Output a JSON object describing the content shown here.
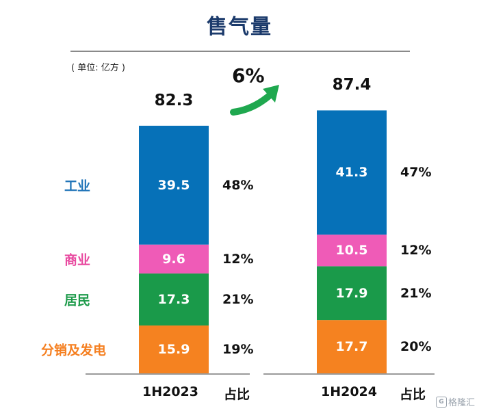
{
  "chart_data": {
    "type": "bar",
    "stacked": true,
    "title": "售气量",
    "unit_label": "( 单位: 亿方 )",
    "categories": [
      "1H2023",
      "1H2024"
    ],
    "share_column_label": "占比",
    "growth_label": "6%",
    "totals": [
      "82.3",
      "87.4"
    ],
    "series": [
      {
        "name": "工业",
        "color": "#0671b8",
        "values": [
          39.5,
          41.3
        ],
        "shares": [
          "48%",
          "47%"
        ]
      },
      {
        "name": "商业",
        "color": "#ef5bb7",
        "values": [
          9.6,
          10.5
        ],
        "shares": [
          "12%",
          "12%"
        ]
      },
      {
        "name": "居民",
        "color": "#1a9a4a",
        "values": [
          17.3,
          17.9
        ],
        "shares": [
          "21%",
          "21%"
        ]
      },
      {
        "name": "分销及发电",
        "color": "#f58220",
        "values": [
          15.9,
          17.7
        ],
        "shares": [
          "19%",
          "20%"
        ]
      }
    ],
    "label_colors": {
      "工业": "#1f74b8",
      "商业": "#e8489f",
      "居民": "#1e9b4b",
      "分销及发电": "#f57f20"
    },
    "arrow_color": "#1fa84f"
  },
  "watermark": {
    "icon": "G",
    "text": "格隆汇"
  }
}
